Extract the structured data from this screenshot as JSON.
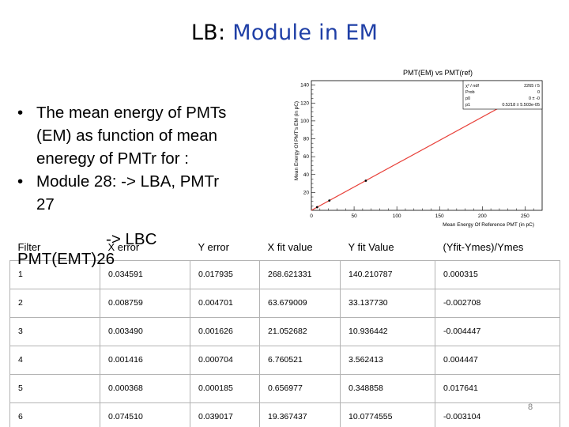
{
  "slide": {
    "title_prefix": "LB: ",
    "title_accent": "Module in EM",
    "bullets": [
      {
        "line1": "The mean energy of PMTs",
        "line2": "(EM) as function of mean",
        "line3": "eneregy of PMTr for :"
      },
      {
        "line1": "Module 28: -> LBA, PMTr",
        "line2": "27"
      }
    ],
    "partial_line_1": "-> LBC",
    "partial_line_2": "PMT(EMT)26",
    "page_number": "8"
  },
  "chart_data": {
    "type": "line",
    "title": "PMT(EM) vs PMT(ref)",
    "xlabel": "Mean Energy Of Reference PMT (in pC)",
    "ylabel": "Mean Energy Of PMT's EM (in pC)",
    "xlim": [
      0,
      270
    ],
    "ylim": [
      0,
      145
    ],
    "x_ticks": [
      "0",
      "50",
      "100",
      "150",
      "200",
      "250"
    ],
    "y_ticks": [
      "20",
      "40",
      "60",
      "80",
      "100",
      "120",
      "140"
    ],
    "points": [
      {
        "x": 6.76,
        "y": 3.56
      },
      {
        "x": 21.05,
        "y": 10.94
      },
      {
        "x": 63.68,
        "y": 33.14
      },
      {
        "x": 268.62,
        "y": 140.21
      }
    ],
    "fit": {
      "p0": 0,
      "p1": 0.5218
    },
    "stats": [
      {
        "label": "χ² / ndf",
        "value": "2265 / 5"
      },
      {
        "label": "Prob",
        "value": "0"
      },
      {
        "label": "p0",
        "value": "0 ± -0"
      },
      {
        "label": "p1",
        "value": "0.5218 ± 5.503e-05"
      }
    ],
    "line_color": "#e8413a",
    "grid": false
  },
  "table": {
    "headers": [
      "Filter",
      "X error",
      "Y error",
      "X fit value",
      "Y fit Value",
      "(Yfit-Ymes)/Ymes"
    ],
    "rows": [
      [
        "1",
        "0.034591",
        "0.017935",
        "268.621331",
        "140.210787",
        "0.000315"
      ],
      [
        "2",
        "0.008759",
        "0.004701",
        "63.679009",
        "33.137730",
        "-0.002708"
      ],
      [
        "3",
        "0.003490",
        "0.001626",
        "21.052682",
        "10.936442",
        "-0.004447"
      ],
      [
        "4",
        "0.001416",
        "0.000704",
        "6.760521",
        "3.562413",
        "0.004447"
      ],
      [
        "5",
        "0.000368",
        "0.000185",
        "0.656977",
        "0.348858",
        "0.017641"
      ],
      [
        "6",
        "0.074510",
        "0.039017",
        "19.367437",
        "10.0774555",
        "-0.003104"
      ]
    ]
  }
}
